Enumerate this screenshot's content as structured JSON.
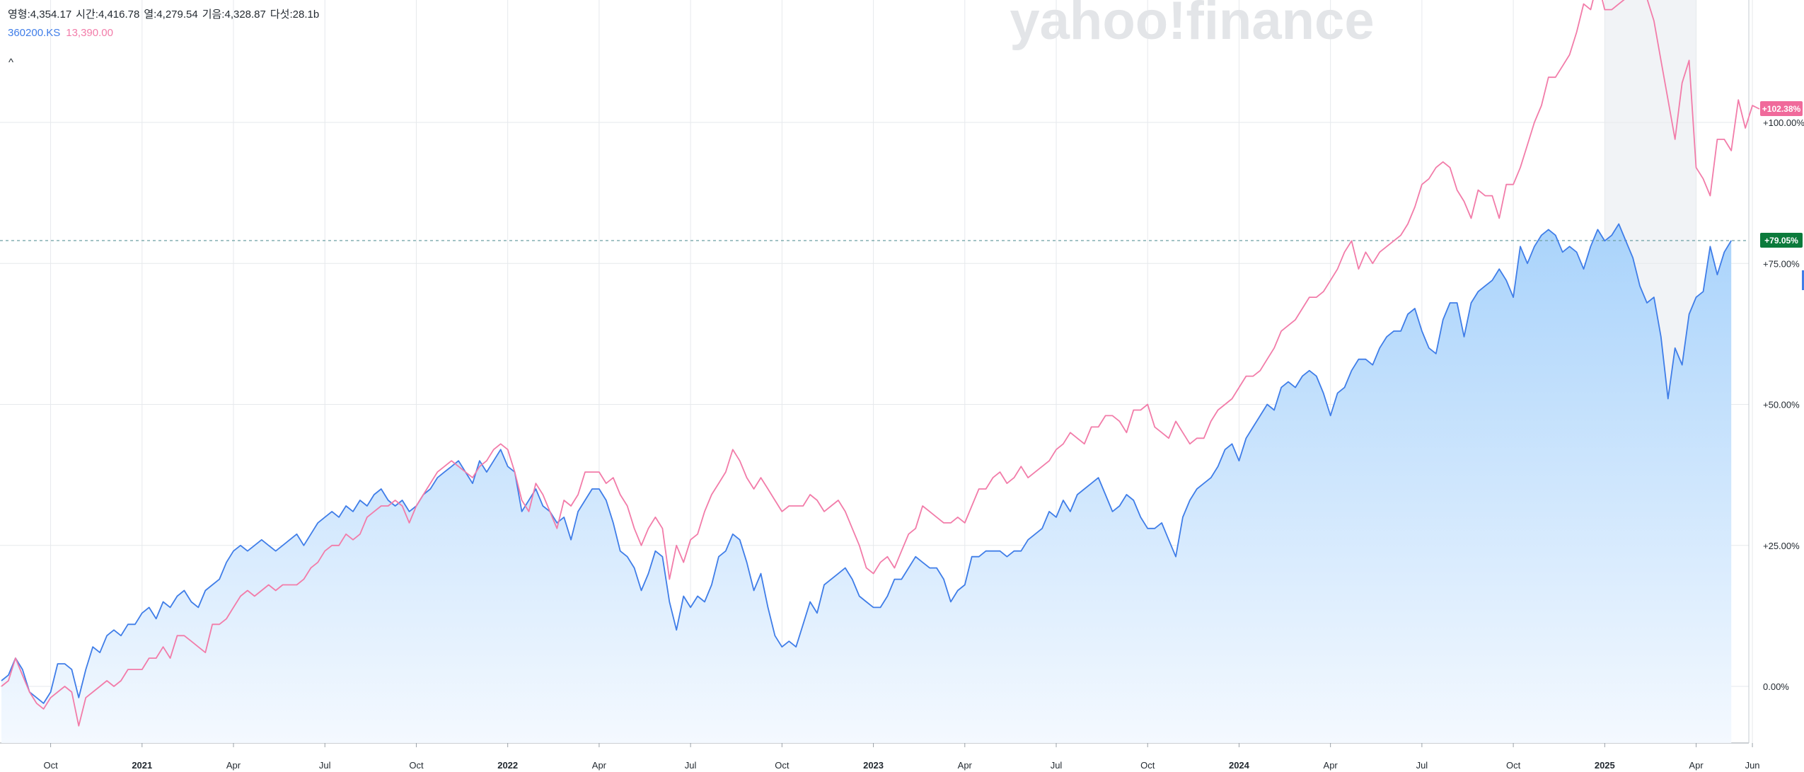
{
  "ohlc": [
    {
      "label": "영형",
      "value": "4,354.17"
    },
    {
      "label": "시간",
      "value": "4,416.78"
    },
    {
      "label": "열",
      "value": "4,279.54"
    },
    {
      "label": "기음",
      "value": "4,328.87"
    },
    {
      "label": "다섯",
      "value": "28.1b"
    }
  ],
  "series_legend": [
    {
      "text": "360200.KS",
      "color": "#3f7de8"
    },
    {
      "text": "13,390.00",
      "color": "#f27ca9"
    }
  ],
  "collapse_label": "^",
  "watermark": "yahoo!finance",
  "badges": [
    {
      "text": "+102.38%",
      "value": 102.38,
      "color": "#f06a9b"
    },
    {
      "text": "+79.05%",
      "value": 79.05,
      "color": "#0b7a3b"
    }
  ],
  "colors": {
    "area_top": "#a9d3fb",
    "area_bottom": "#f4f9ff",
    "blue_line": "#3f7de8",
    "pink_line": "#f27ca9",
    "grid": "#e6e9ec",
    "ref_line": "#6b9fa2",
    "shade": "#f1f3f6",
    "watermark": "#e3e5e8"
  },
  "chart_data": {
    "type": "line",
    "x_unit": "weekly, from 2020-08 to 2025-06",
    "y_unit": "% change",
    "ylim": [
      -20,
      220
    ],
    "ytick_labels": [
      {
        "value": 0,
        "text": "0.00%"
      },
      {
        "value": 25,
        "text": "+25.00%"
      },
      {
        "value": 50,
        "text": "+50.00%"
      },
      {
        "value": 75,
        "text": "+75.00%"
      },
      {
        "value": 100,
        "text": "+100.00%"
      }
    ],
    "xtick_labels": [
      {
        "index": 7,
        "text": "Oct"
      },
      {
        "index": 20,
        "text": "2021",
        "bold": true
      },
      {
        "index": 33,
        "text": "Apr"
      },
      {
        "index": 46,
        "text": "Jul"
      },
      {
        "index": 59,
        "text": "Oct"
      },
      {
        "index": 72,
        "text": "2022",
        "bold": true
      },
      {
        "index": 85,
        "text": "Apr"
      },
      {
        "index": 98,
        "text": "Jul"
      },
      {
        "index": 111,
        "text": "Oct"
      },
      {
        "index": 124,
        "text": "2023",
        "bold": true
      },
      {
        "index": 137,
        "text": "Apr"
      },
      {
        "index": 150,
        "text": "Jul"
      },
      {
        "index": 163,
        "text": "Oct"
      },
      {
        "index": 176,
        "text": "2024",
        "bold": true
      },
      {
        "index": 189,
        "text": "Apr"
      },
      {
        "index": 202,
        "text": "Jul"
      },
      {
        "index": 215,
        "text": "Oct"
      },
      {
        "index": 228,
        "text": "2025",
        "bold": true
      },
      {
        "index": 241,
        "text": "Apr"
      },
      {
        "index": 249,
        "text": "Jun"
      }
    ],
    "shaded_range": [
      228,
      241
    ],
    "reference_value": 79.05,
    "series": [
      {
        "name": "360200.KS",
        "style": "area",
        "values": [
          1.0,
          2.0,
          5.0,
          3.0,
          -1.0,
          -2.0,
          -3.0,
          -1.0,
          4.0,
          4.0,
          3.0,
          -2.0,
          3.0,
          7.0,
          6.0,
          9.0,
          10.0,
          9.0,
          11.0,
          11.0,
          13.0,
          14.0,
          12.0,
          15.0,
          14.0,
          16.0,
          17.0,
          15.0,
          14.0,
          17.0,
          18.0,
          19.0,
          22.0,
          24.0,
          25.0,
          24.0,
          25.0,
          26.0,
          25.0,
          24.0,
          25.0,
          26.0,
          27.0,
          25.0,
          27.0,
          29.0,
          30.0,
          31.0,
          30.0,
          32.0,
          31.0,
          33.0,
          32.0,
          34.0,
          35.0,
          33.0,
          32.0,
          33.0,
          31.0,
          32.0,
          34.0,
          35.0,
          37.0,
          38.0,
          39.0,
          40.0,
          38.0,
          36.0,
          40.0,
          38.0,
          40.0,
          42.0,
          39.0,
          38.0,
          31.0,
          33.0,
          35.0,
          32.0,
          31.0,
          29.0,
          30.0,
          26.0,
          31.0,
          33.0,
          35.0,
          35.0,
          33.0,
          29.0,
          24.0,
          23.0,
          21.0,
          17.0,
          20.0,
          24.0,
          23.0,
          15.0,
          10.0,
          16.0,
          14.0,
          16.0,
          15.0,
          18.0,
          23.0,
          24.0,
          27.0,
          26.0,
          22.0,
          17.0,
          20.0,
          14.0,
          9.0,
          7.0,
          8.0,
          7.0,
          11.0,
          15.0,
          13.0,
          18.0,
          19.0,
          20.0,
          21.0,
          19.0,
          16.0,
          15.0,
          14.0,
          14.0,
          16.0,
          19.0,
          19.0,
          21.0,
          23.0,
          22.0,
          21.0,
          21.0,
          19.0,
          15.0,
          17.0,
          18.0,
          23.0,
          23.0,
          24.0,
          24.0,
          24.0,
          23.0,
          24.0,
          24.0,
          26.0,
          27.0,
          28.0,
          31.0,
          30.0,
          33.0,
          31.0,
          34.0,
          35.0,
          36.0,
          37.0,
          34.0,
          31.0,
          32.0,
          34.0,
          33.0,
          30.0,
          28.0,
          28.0,
          29.0,
          26.0,
          23.0,
          30.0,
          33.0,
          35.0,
          36.0,
          37.0,
          39.0,
          42.0,
          43.0,
          40.0,
          44.0,
          46.0,
          48.0,
          50.0,
          49.0,
          53.0,
          54.0,
          53.0,
          55.0,
          56.0,
          55.0,
          52.0,
          48.0,
          52.0,
          53.0,
          56.0,
          58.0,
          58.0,
          57.0,
          60.0,
          62.0,
          63.0,
          63.0,
          66.0,
          67.0,
          63.0,
          60.0,
          59.0,
          65.0,
          68.0,
          68.0,
          62.0,
          68.0,
          70.0,
          71.0,
          72.0,
          74.0,
          72.0,
          69.0,
          78.0,
          75.0,
          78.0,
          80.0,
          81.0,
          80.0,
          77.0,
          78.0,
          77.0,
          74.0,
          78.0,
          81.0,
          79.0,
          80.0,
          82.0,
          79.0,
          76.0,
          71.0,
          68.0,
          69.0,
          62.0,
          51.0,
          60.0,
          57.0,
          66.0,
          69.0,
          70.0,
          78.0,
          73.0,
          77.0,
          79.05
        ]
      },
      {
        "name": "13,390.00",
        "style": "line",
        "values": [
          0.0,
          1.0,
          5.0,
          2.0,
          -1.0,
          -3.0,
          -4.0,
          -2.0,
          -1.0,
          0.0,
          -1.0,
          -7.0,
          -2.0,
          -1.0,
          0.0,
          1.0,
          0.0,
          1.0,
          3.0,
          3.0,
          3.0,
          5.0,
          5.0,
          7.0,
          5.0,
          9.0,
          9.0,
          8.0,
          7.0,
          6.0,
          11.0,
          11.0,
          12.0,
          14.0,
          16.0,
          17.0,
          16.0,
          17.0,
          18.0,
          17.0,
          18.0,
          18.0,
          18.0,
          19.0,
          21.0,
          22.0,
          24.0,
          25.0,
          25.0,
          27.0,
          26.0,
          27.0,
          30.0,
          31.0,
          32.0,
          32.0,
          33.0,
          32.0,
          29.0,
          32.0,
          34.0,
          36.0,
          38.0,
          39.0,
          40.0,
          39.0,
          38.0,
          37.0,
          39.0,
          40.0,
          42.0,
          43.0,
          42.0,
          38.0,
          33.0,
          31.0,
          36.0,
          34.0,
          31.0,
          28.0,
          33.0,
          32.0,
          34.0,
          38.0,
          38.0,
          38.0,
          36.0,
          37.0,
          34.0,
          32.0,
          28.0,
          25.0,
          28.0,
          30.0,
          28.0,
          19.0,
          25.0,
          22.0,
          26.0,
          27.0,
          31.0,
          34.0,
          36.0,
          38.0,
          42.0,
          40.0,
          37.0,
          35.0,
          37.0,
          35.0,
          33.0,
          31.0,
          32.0,
          32.0,
          32.0,
          34.0,
          33.0,
          31.0,
          32.0,
          33.0,
          31.0,
          28.0,
          25.0,
          21.0,
          20.0,
          22.0,
          23.0,
          21.0,
          24.0,
          27.0,
          28.0,
          32.0,
          31.0,
          30.0,
          29.0,
          29.0,
          30.0,
          29.0,
          32.0,
          35.0,
          35.0,
          37.0,
          38.0,
          36.0,
          37.0,
          39.0,
          37.0,
          38.0,
          39.0,
          40.0,
          42.0,
          43.0,
          45.0,
          44.0,
          43.0,
          46.0,
          46.0,
          48.0,
          48.0,
          47.0,
          45.0,
          49.0,
          49.0,
          50.0,
          46.0,
          45.0,
          44.0,
          47.0,
          45.0,
          43.0,
          44.0,
          44.0,
          47.0,
          49.0,
          50.0,
          51.0,
          53.0,
          55.0,
          55.0,
          56.0,
          58.0,
          60.0,
          63.0,
          64.0,
          65.0,
          67.0,
          69.0,
          69.0,
          70.0,
          72.0,
          74.0,
          77.0,
          79.0,
          74.0,
          77.0,
          75.0,
          77.0,
          78.0,
          79.0,
          80.0,
          82.0,
          85.0,
          89.0,
          90.0,
          92.0,
          93.0,
          92.0,
          88.0,
          86.0,
          83.0,
          88.0,
          87.0,
          87.0,
          83.0,
          89.0,
          89.0,
          92.0,
          96.0,
          100.0,
          103.0,
          108.0,
          108.0,
          110.0,
          112.0,
          116.0,
          121.0,
          120.0,
          125.0,
          120.0,
          120.0,
          121.0,
          122.0,
          124.0,
          123.0,
          122.0,
          118.0,
          111.0,
          104.0,
          97.0,
          107.0,
          111.0,
          92.0,
          90.0,
          87.0,
          97.0,
          97.0,
          95.0,
          104.0,
          99.0,
          103.0,
          102.38
        ]
      }
    ]
  }
}
